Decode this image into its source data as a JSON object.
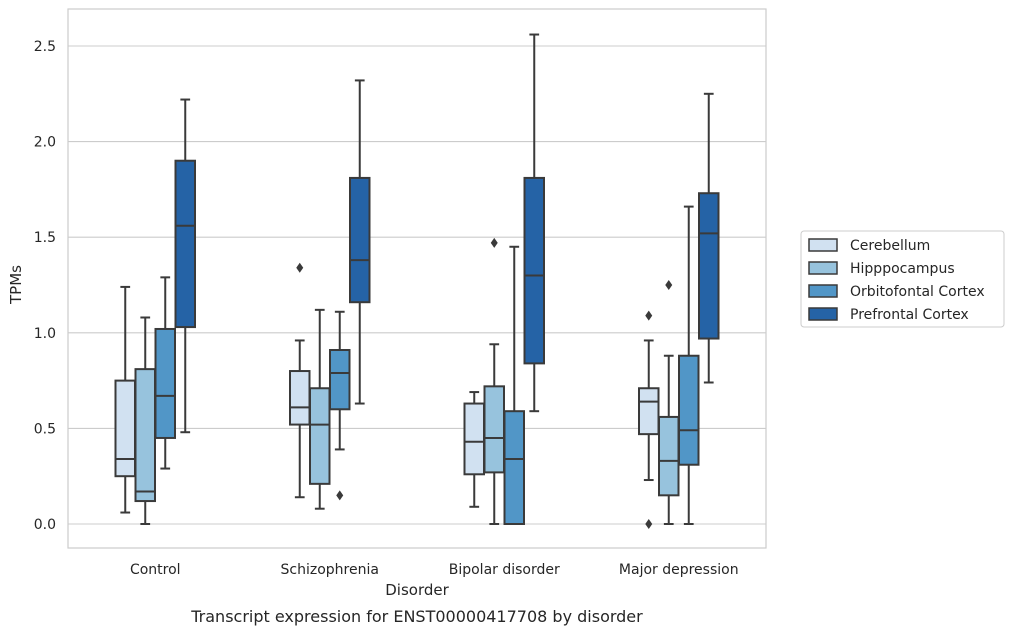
{
  "chart_data": {
    "type": "box",
    "caption": "Transcript expression for ENST00000417708 by disorder",
    "xlabel": "Disorder",
    "ylabel": "TPMs",
    "ylim": [
      -0.12,
      2.7
    ],
    "yticks": [
      "0.0",
      "0.5",
      "1.0",
      "1.5",
      "2.0",
      "2.5"
    ],
    "ytick_values": [
      0.0,
      0.5,
      1.0,
      1.5,
      2.0,
      2.5
    ],
    "grid": "horizontal",
    "legend_position": "right",
    "categories": [
      "Control",
      "Schizophrenia",
      "Bipolar disorder",
      "Major depression"
    ],
    "series": [
      {
        "name": "Cerebellum",
        "color": "#d1e1f1",
        "boxes": [
          {
            "whislo": 0.06,
            "q1": 0.25,
            "med": 0.34,
            "q3": 0.75,
            "whishi": 1.24,
            "fliers": []
          },
          {
            "whislo": 0.14,
            "q1": 0.52,
            "med": 0.61,
            "q3": 0.8,
            "whishi": 0.96,
            "fliers": [
              1.34
            ]
          },
          {
            "whislo": 0.09,
            "q1": 0.26,
            "med": 0.43,
            "q3": 0.63,
            "whishi": 0.69,
            "fliers": []
          },
          {
            "whislo": 0.23,
            "q1": 0.47,
            "med": 0.64,
            "q3": 0.71,
            "whishi": 0.96,
            "fliers": [
              1.09,
              0.0
            ]
          }
        ]
      },
      {
        "name": "Hipppocampus",
        "color": "#97c3dd",
        "boxes": [
          {
            "whislo": 0.0,
            "q1": 0.12,
            "med": 0.17,
            "q3": 0.81,
            "whishi": 1.08,
            "fliers": []
          },
          {
            "whislo": 0.08,
            "q1": 0.21,
            "med": 0.52,
            "q3": 0.71,
            "whishi": 1.12,
            "fliers": []
          },
          {
            "whislo": 0.0,
            "q1": 0.27,
            "med": 0.45,
            "q3": 0.72,
            "whishi": 0.94,
            "fliers": [
              1.47
            ]
          },
          {
            "whislo": 0.0,
            "q1": 0.15,
            "med": 0.33,
            "q3": 0.56,
            "whishi": 0.88,
            "fliers": [
              1.25
            ]
          }
        ]
      },
      {
        "name": "Orbitofontal Cortex",
        "color": "#5196c7",
        "boxes": [
          {
            "whislo": 0.29,
            "q1": 0.45,
            "med": 0.67,
            "q3": 1.02,
            "whishi": 1.29,
            "fliers": []
          },
          {
            "whislo": 0.39,
            "q1": 0.6,
            "med": 0.79,
            "q3": 0.91,
            "whishi": 1.11,
            "fliers": [
              0.15
            ]
          },
          {
            "whislo": 0.0,
            "q1": 0.0,
            "med": 0.34,
            "q3": 0.59,
            "whishi": 1.45,
            "fliers": []
          },
          {
            "whislo": 0.0,
            "q1": 0.31,
            "med": 0.49,
            "q3": 0.88,
            "whishi": 1.66,
            "fliers": []
          }
        ]
      },
      {
        "name": "Prefrontal Cortex",
        "color": "#2563a6",
        "boxes": [
          {
            "whislo": 0.48,
            "q1": 1.03,
            "med": 1.56,
            "q3": 1.9,
            "whishi": 2.22,
            "fliers": []
          },
          {
            "whislo": 0.63,
            "q1": 1.16,
            "med": 1.38,
            "q3": 1.81,
            "whishi": 2.32,
            "fliers": []
          },
          {
            "whislo": 0.59,
            "q1": 0.84,
            "med": 1.3,
            "q3": 1.81,
            "whishi": 2.56,
            "fliers": []
          },
          {
            "whislo": 0.74,
            "q1": 0.97,
            "med": 1.52,
            "q3": 1.73,
            "whishi": 2.25,
            "fliers": []
          }
        ]
      }
    ]
  }
}
